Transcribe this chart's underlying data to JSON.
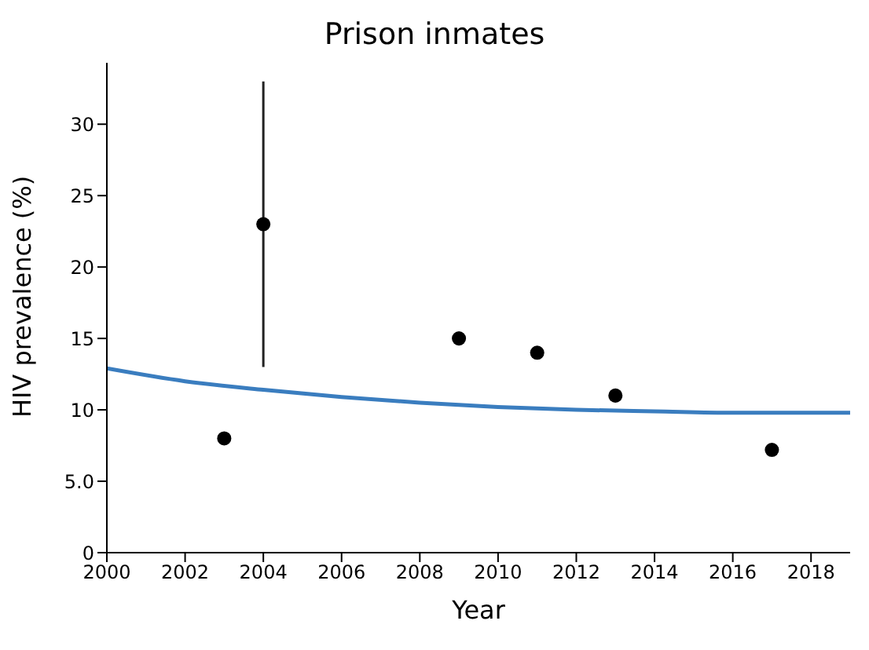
{
  "chart_data": {
    "type": "scatter",
    "title": "Prison inmates",
    "xlabel": "Year",
    "ylabel": "HIV prevalence (%)",
    "xlim": [
      2000,
      2019
    ],
    "xticks": [
      2000,
      2002,
      2004,
      2006,
      2008,
      2010,
      2012,
      2014,
      2016,
      2018
    ],
    "ylim": [
      0,
      34.3
    ],
    "yticks": [
      0,
      {
        "value": 5,
        "label": "5.0"
      },
      10,
      15,
      20,
      25,
      30
    ],
    "grid": false,
    "legend": false,
    "marker": "circle",
    "series": [
      {
        "type": "line",
        "marker": "none",
        "color": "#3a7dbf",
        "x": [
          2000,
          2002,
          2004,
          2006,
          2008,
          2010,
          2012,
          2014,
          2016,
          2018,
          2019
        ],
        "values": [
          12.9,
          12.0,
          11.4,
          10.9,
          10.5,
          10.2,
          10.0,
          9.9,
          9.8,
          9.8,
          9.8
        ]
      },
      {
        "color": "#000000",
        "x": [
          2003,
          2004,
          2009,
          2011,
          2013,
          2017
        ],
        "values": [
          8,
          23,
          15,
          14,
          11,
          7.2
        ],
        "errors": [
          null,
          [
            13,
            33
          ],
          null,
          null,
          null,
          null
        ]
      }
    ]
  }
}
